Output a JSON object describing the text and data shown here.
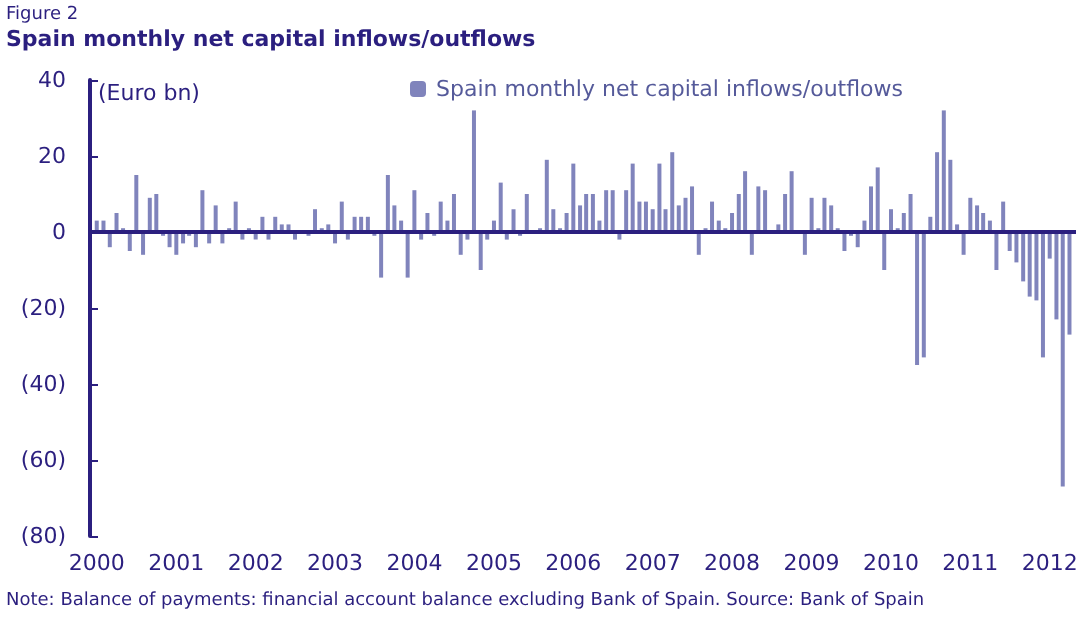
{
  "chart_data": {
    "type": "bar",
    "subtitle": "Figure 2",
    "title": "Spain monthly net capital inflows/outflows",
    "ylabel": "(Euro bn)",
    "annotations": [
      "Note: Balance of payments: financial account balance excluding Bank of Spain. Source: Bank of Spain"
    ],
    "x": [
      "2000-01",
      "2000-02",
      "2000-03",
      "2000-04",
      "2000-05",
      "2000-06",
      "2000-07",
      "2000-08",
      "2000-09",
      "2000-10",
      "2000-11",
      "2000-12",
      "2001-01",
      "2001-02",
      "2001-03",
      "2001-04",
      "2001-05",
      "2001-06",
      "2001-07",
      "2001-08",
      "2001-09",
      "2001-10",
      "2001-11",
      "2001-12",
      "2002-01",
      "2002-02",
      "2002-03",
      "2002-04",
      "2002-05",
      "2002-06",
      "2002-07",
      "2002-08",
      "2002-09",
      "2002-10",
      "2002-11",
      "2002-12",
      "2003-01",
      "2003-02",
      "2003-03",
      "2003-04",
      "2003-05",
      "2003-06",
      "2003-07",
      "2003-08",
      "2003-09",
      "2003-10",
      "2003-11",
      "2003-12",
      "2004-01",
      "2004-02",
      "2004-03",
      "2004-04",
      "2004-05",
      "2004-06",
      "2004-07",
      "2004-08",
      "2004-09",
      "2004-10",
      "2004-11",
      "2004-12",
      "2005-01",
      "2005-02",
      "2005-03",
      "2005-04",
      "2005-05",
      "2005-06",
      "2005-07",
      "2005-08",
      "2005-09",
      "2005-10",
      "2005-11",
      "2005-12",
      "2006-01",
      "2006-02",
      "2006-03",
      "2006-04",
      "2006-05",
      "2006-06",
      "2006-07",
      "2006-08",
      "2006-09",
      "2006-10",
      "2006-11",
      "2006-12",
      "2007-01",
      "2007-02",
      "2007-03",
      "2007-04",
      "2007-05",
      "2007-06",
      "2007-07",
      "2007-08",
      "2007-09",
      "2007-10",
      "2007-11",
      "2007-12",
      "2008-01",
      "2008-02",
      "2008-03",
      "2008-04",
      "2008-05",
      "2008-06",
      "2008-07",
      "2008-08",
      "2008-09",
      "2008-10",
      "2008-11",
      "2008-12",
      "2009-01",
      "2009-02",
      "2009-03",
      "2009-04",
      "2009-05",
      "2009-06",
      "2009-07",
      "2009-08",
      "2009-09",
      "2009-10",
      "2009-11",
      "2009-12",
      "2010-01",
      "2010-02",
      "2010-03",
      "2010-04",
      "2010-05",
      "2010-06",
      "2010-07",
      "2010-08",
      "2010-09",
      "2010-10",
      "2010-11",
      "2010-12",
      "2011-01",
      "2011-02",
      "2011-03",
      "2011-04",
      "2011-05",
      "2011-06",
      "2011-07",
      "2011-08",
      "2011-09",
      "2011-10",
      "2011-11",
      "2011-12",
      "2012-01",
      "2012-02",
      "2012-03",
      "2012-04"
    ],
    "series": [
      {
        "name": "Spain monthly net capital inflows/outflows",
        "color": "#8084bc",
        "values": [
          3,
          3,
          -4,
          5,
          1,
          -5,
          15,
          -6,
          9,
          10,
          -1,
          -4,
          -6,
          -3,
          -1,
          -4,
          11,
          -3,
          7,
          -3,
          1,
          8,
          -2,
          1,
          -2,
          4,
          -2,
          4,
          2,
          2,
          -2,
          0,
          -1,
          6,
          1,
          2,
          -3,
          8,
          -2,
          4,
          4,
          4,
          -1,
          -12,
          15,
          7,
          3,
          -12,
          11,
          -2,
          5,
          -1,
          8,
          3,
          10,
          -6,
          -2,
          32,
          -10,
          -2,
          3,
          13,
          -2,
          6,
          -1,
          10,
          0,
          1,
          19,
          6,
          1,
          5,
          18,
          7,
          10,
          10,
          3,
          11,
          11,
          -2,
          11,
          18,
          8,
          8,
          6,
          18,
          6,
          21,
          7,
          9,
          12,
          -6,
          1,
          8,
          3,
          1,
          5,
          10,
          16,
          -6,
          12,
          11,
          0,
          2,
          10,
          16,
          0,
          -6,
          9,
          1,
          9,
          7,
          1,
          -5,
          -1,
          -4,
          3,
          12,
          17,
          -10,
          6,
          1,
          5,
          10,
          -35,
          -33,
          4,
          21,
          32,
          19,
          2,
          -6,
          9,
          7,
          5,
          3,
          -10,
          8,
          -5,
          -8,
          -13,
          -17,
          -18,
          -33,
          -7,
          -23,
          -67,
          -27
        ]
      }
    ],
    "xlim": [
      "1999-12",
      "2012-05"
    ],
    "xticks": [
      {
        "value": "2000",
        "label": "2000"
      },
      {
        "value": "2001",
        "label": "2001"
      },
      {
        "value": "2002",
        "label": "2002"
      },
      {
        "value": "2003",
        "label": "2003"
      },
      {
        "value": "2004",
        "label": "2004"
      },
      {
        "value": "2005",
        "label": "2005"
      },
      {
        "value": "2006",
        "label": "2006"
      },
      {
        "value": "2007",
        "label": "2007"
      },
      {
        "value": "2008",
        "label": "2008"
      },
      {
        "value": "2009",
        "label": "2009"
      },
      {
        "value": "2010",
        "label": "2010"
      },
      {
        "value": "2011",
        "label": "2011"
      },
      {
        "value": "2012",
        "label": "2012"
      }
    ],
    "ylim": [
      -80,
      40
    ],
    "yticks": [
      {
        "value": -80,
        "label": "(80)"
      },
      {
        "value": -60,
        "label": "(60)"
      },
      {
        "value": -40,
        "label": "(40)"
      },
      {
        "value": -20,
        "label": "(20)"
      },
      0,
      20,
      40
    ],
    "ref_lines": [
      {
        "axis": "y",
        "value": 0,
        "color": "#2b1f7f"
      }
    ],
    "grid": false,
    "legend": "top"
  }
}
